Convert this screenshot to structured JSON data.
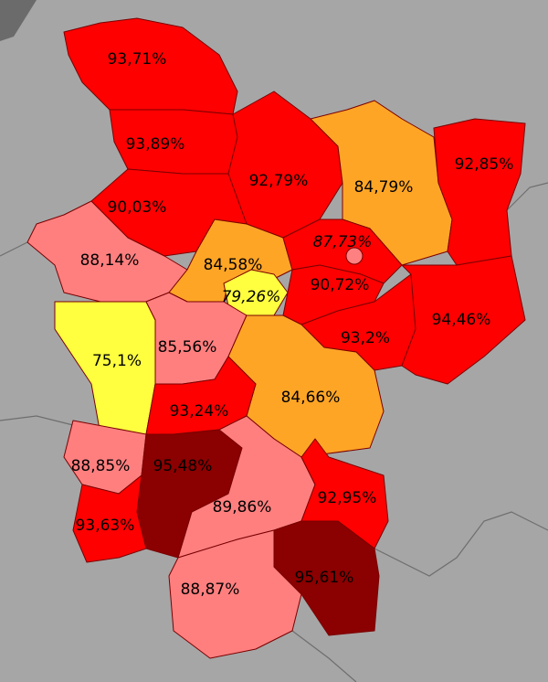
{
  "regions": [
    {
      "label": "93,71%",
      "color": "#ff0000"
    },
    {
      "label": "93,89%",
      "color": "#ff0000"
    },
    {
      "label": "92,79%",
      "color": "#ff0000"
    },
    {
      "label": "84,79%",
      "color": "#ffa526"
    },
    {
      "label": "92,85%",
      "color": "#ff0000"
    },
    {
      "label": "90,03%",
      "color": "#ff0000"
    },
    {
      "label": "88,14%",
      "color": "#ff7f7f"
    },
    {
      "label": "84,58%",
      "color": "#ffa526"
    },
    {
      "label": "87,73%",
      "color": "#ff0000",
      "style": "italic"
    },
    {
      "label": "79,26%",
      "color": "#ffff40",
      "style": "italic"
    },
    {
      "label": "90,72%",
      "color": "#ff0000"
    },
    {
      "label": "93,2%",
      "color": "#ff0000"
    },
    {
      "label": "94,46%",
      "color": "#ff0000"
    },
    {
      "label": "75,1%",
      "color": "#ffff40"
    },
    {
      "label": "85,56%",
      "color": "#ff7f7f"
    },
    {
      "label": "84,66%",
      "color": "#ffa526"
    },
    {
      "label": "93,24%",
      "color": "#ff0000"
    },
    {
      "label": "88,85%",
      "color": "#ff7f7f"
    },
    {
      "label": "95,48%",
      "color": "#8b0000"
    },
    {
      "label": "89,86%",
      "color": "#ff7f7f"
    },
    {
      "label": "92,95%",
      "color": "#ff0000"
    },
    {
      "label": "93,63%",
      "color": "#ff0000"
    },
    {
      "label": "88,87%",
      "color": "#ff7f7f"
    },
    {
      "label": "95,61%",
      "color": "#8b0000"
    }
  ]
}
